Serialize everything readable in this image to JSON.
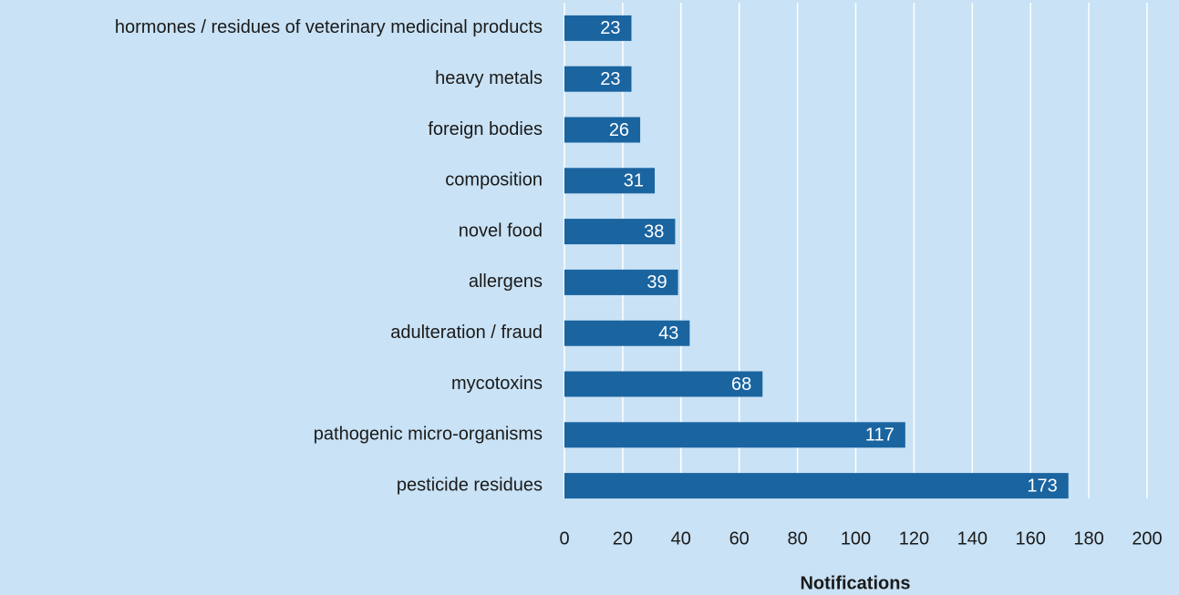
{
  "chart_data": {
    "type": "bar",
    "orientation": "horizontal",
    "categories": [
      "hormones / residues of veterinary medicinal products",
      "heavy metals",
      "foreign bodies",
      "composition",
      "novel food",
      "allergens",
      "adulteration / fraud",
      "mycotoxins",
      "pathogenic micro-organisms",
      "pesticide residues"
    ],
    "values": [
      23,
      23,
      26,
      31,
      38,
      39,
      43,
      68,
      117,
      173
    ],
    "color": "#1a64a0",
    "xlabel": "Notifications",
    "xlim": [
      0,
      200
    ],
    "xticks": [
      0,
      20,
      40,
      60,
      80,
      100,
      120,
      140,
      160,
      180,
      200
    ],
    "grid": true
  }
}
